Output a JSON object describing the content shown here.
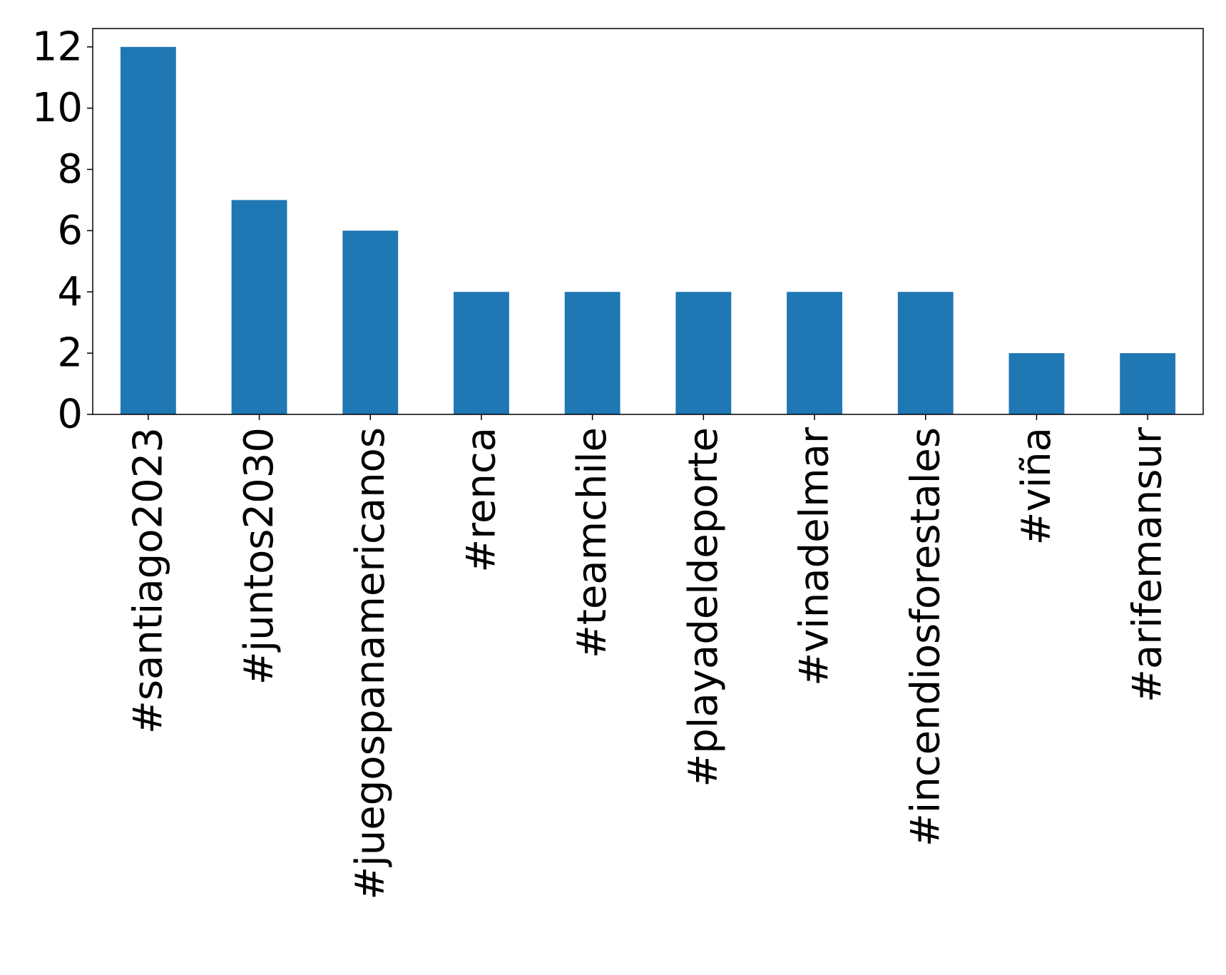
{
  "chart_data": {
    "type": "bar",
    "categories": [
      "#santiago2023",
      "#juntos2030",
      "#juegospanamericanos",
      "#renca",
      "#teamchile",
      "#playadeldeporte",
      "#vinadelmar",
      "#incendiosforestales",
      "#viña",
      "#arifemansur"
    ],
    "values": [
      12,
      7,
      6,
      4,
      4,
      4,
      4,
      4,
      2,
      2
    ],
    "title": "",
    "xlabel": "",
    "ylabel": "",
    "ylim": [
      0,
      12.6
    ],
    "yticks": [
      "0",
      "2",
      "4",
      "6",
      "8",
      "10",
      "12"
    ],
    "bar_color": "#1f77b4",
    "grid": false,
    "legend": "none"
  }
}
